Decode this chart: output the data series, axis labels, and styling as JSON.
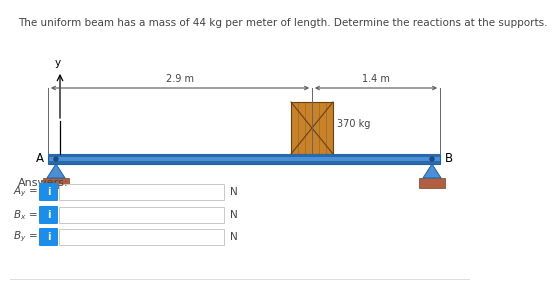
{
  "title": "The uniform beam has a mass of 44 kg per meter of length. Determine the reactions at the supports.",
  "title_fontsize": 7.5,
  "beam_color": "#4a90d9",
  "beam_edge_color": "#2060a0",
  "beam_dark_stripe": "#2a6aaa",
  "load_color": "#c8832a",
  "load_edge_color": "#6a4010",
  "ground_color": "#b06040",
  "ground_edge_color": "#7a4020",
  "support_color": "#4a90d9",
  "support_edge_color": "#2060a0",
  "dim_2p9": "2.9 m",
  "dim_1p4": "1.4 m",
  "mass_label": "370 kg",
  "label_A": "A",
  "label_B": "B",
  "label_y": "y",
  "answers_label": "Answers:",
  "row_labels": [
    "A_y",
    "B_x",
    "B_y"
  ],
  "unit_label": "N",
  "box_color": "#1a8eea",
  "box_text": "i",
  "input_border_color": "#c8c8c8",
  "background_color": "#ffffff",
  "text_color": "#444444"
}
